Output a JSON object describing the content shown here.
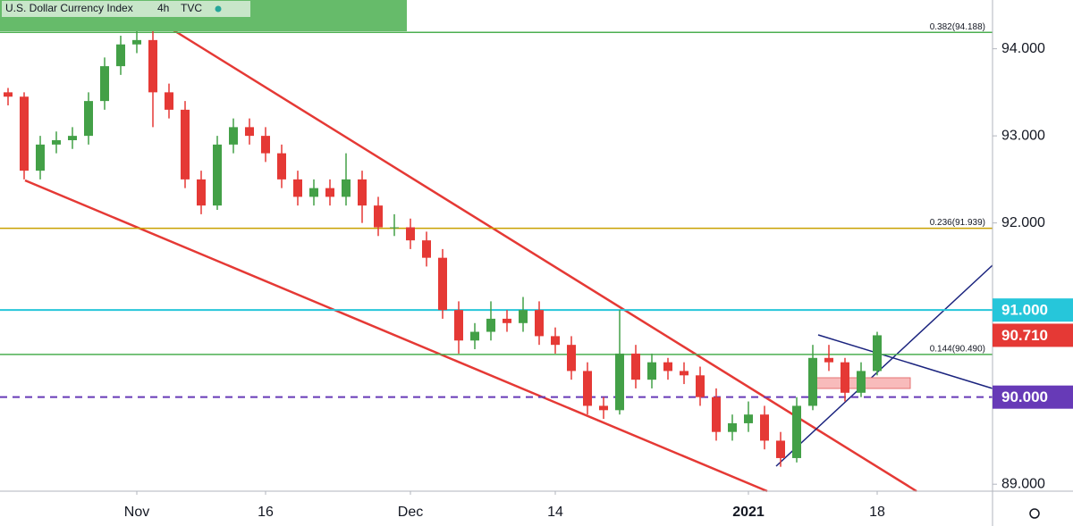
{
  "header": {
    "symbol": "U.S. Dollar Currency Index",
    "interval": "4h",
    "source": "TVC"
  },
  "chart_data": {
    "type": "candlestick",
    "categories": [
      null,
      null,
      null,
      null,
      null,
      null,
      null,
      null,
      "Nov",
      null,
      null,
      null,
      null,
      null,
      null,
      null,
      "16",
      null,
      null,
      null,
      null,
      null,
      null,
      null,
      null,
      "Dec",
      null,
      null,
      null,
      null,
      null,
      null,
      null,
      null,
      "14",
      null,
      null,
      null,
      null,
      null,
      null,
      null,
      null,
      null,
      null,
      null,
      "2021",
      null,
      null,
      null,
      null,
      null,
      null,
      null,
      "18"
    ],
    "open": [
      93.5,
      93.45,
      92.6,
      92.9,
      92.95,
      93.0,
      93.4,
      93.8,
      94.05,
      94.1,
      93.5,
      93.3,
      92.5,
      92.2,
      92.9,
      93.1,
      93.0,
      92.8,
      92.5,
      92.3,
      92.4,
      92.3,
      92.5,
      92.2,
      91.95,
      91.95,
      91.8,
      91.6,
      91.0,
      90.65,
      90.75,
      90.9,
      90.85,
      91.0,
      90.7,
      90.6,
      90.3,
      89.9,
      89.85,
      90.5,
      90.2,
      90.4,
      90.3,
      90.25,
      90.0,
      89.6,
      89.7,
      89.8,
      89.5,
      89.3,
      89.9,
      90.45,
      90.4,
      90.05,
      90.3
    ],
    "high": [
      93.55,
      93.5,
      93.0,
      93.05,
      93.1,
      93.5,
      93.9,
      94.15,
      94.25,
      94.3,
      93.6,
      93.4,
      92.6,
      93.0,
      93.2,
      93.2,
      93.1,
      92.9,
      92.6,
      92.5,
      92.5,
      92.8,
      92.6,
      92.3,
      92.1,
      92.05,
      91.9,
      91.7,
      91.1,
      90.85,
      91.1,
      91.0,
      91.15,
      91.1,
      90.8,
      90.7,
      90.4,
      90.0,
      91.0,
      90.6,
      90.5,
      90.45,
      90.4,
      90.35,
      90.1,
      89.8,
      89.95,
      89.9,
      89.6,
      90.0,
      90.6,
      90.6,
      90.45,
      90.4,
      90.75
    ],
    "low": [
      93.35,
      92.5,
      92.5,
      92.8,
      92.85,
      92.9,
      93.3,
      93.7,
      93.95,
      93.1,
      93.2,
      92.4,
      92.1,
      92.15,
      92.8,
      92.9,
      92.7,
      92.4,
      92.2,
      92.2,
      92.2,
      92.2,
      92.0,
      91.85,
      91.85,
      91.7,
      91.5,
      90.9,
      90.5,
      90.55,
      90.65,
      90.75,
      90.75,
      90.6,
      90.5,
      90.2,
      89.8,
      89.75,
      89.8,
      90.1,
      90.1,
      90.2,
      90.15,
      89.9,
      89.5,
      89.5,
      89.6,
      89.4,
      89.2,
      89.25,
      89.85,
      90.3,
      89.95,
      90.0,
      90.25
    ],
    "close": [
      93.45,
      92.6,
      92.9,
      92.95,
      93.0,
      93.4,
      93.8,
      94.05,
      94.1,
      93.5,
      93.3,
      92.5,
      92.2,
      92.9,
      93.1,
      93.0,
      92.8,
      92.5,
      92.3,
      92.4,
      92.3,
      92.5,
      92.2,
      91.95,
      91.95,
      91.8,
      91.6,
      91.0,
      90.65,
      90.75,
      90.9,
      90.85,
      91.0,
      90.7,
      90.6,
      90.3,
      89.9,
      89.85,
      90.5,
      90.2,
      90.4,
      90.3,
      90.25,
      90.0,
      89.6,
      89.7,
      89.8,
      89.5,
      89.3,
      89.9,
      90.45,
      90.4,
      90.05,
      90.3,
      90.71
    ],
    "up_color": "#43a047",
    "down_color": "#e53935",
    "ylim": [
      88.92,
      94.56
    ],
    "yticks": [
      {
        "value": 89,
        "label": "89.000"
      },
      {
        "value": 90,
        "label": "90.000"
      },
      {
        "value": 91,
        "label": "91.000"
      },
      {
        "value": 92,
        "label": "92.000"
      },
      {
        "value": 93,
        "label": "93.000"
      },
      {
        "value": 94,
        "label": "94.000"
      }
    ],
    "fib_levels": [
      {
        "value": 94.188,
        "label": "0.382(94.188)",
        "color": "#4caf50"
      },
      {
        "value": 91.939,
        "label": "0.236(91.939)",
        "color": "#c9a100"
      },
      {
        "value": 90.49,
        "label": "0.144(90.490)",
        "color": "#4caf50"
      }
    ],
    "price_lines": [
      {
        "value": 91.0,
        "label": "91.000",
        "color": "#26c6da",
        "dashed": false
      },
      {
        "value": 90.0,
        "label": "90.000",
        "color": "#673ab7",
        "dashed": true
      },
      {
        "value": 90.71,
        "label": "90.710",
        "color": "#e53935",
        "dashed": null
      }
    ]
  }
}
